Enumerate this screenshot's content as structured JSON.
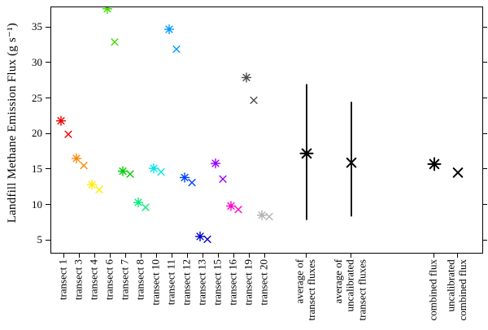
{
  "chart_data": {
    "type": "scatter",
    "title": "",
    "xlabel": "",
    "ylabel": "Landfill Methane Emission Flux (g s⁻¹)",
    "ylim": [
      3.3,
      37.9
    ],
    "yticks": [
      5,
      10,
      15,
      20,
      25,
      30,
      35
    ],
    "grid": false,
    "legend_position": "none",
    "marker_types": {
      "star": "asterisk pch-8",
      "cross": "x pch-4"
    },
    "categories": [
      "transect 1",
      "transect 3",
      "transect 4",
      "transect 6",
      "transect 7",
      "transect 8",
      "transect 10",
      "transect 11",
      "transect 12",
      "transect 13",
      "transect 15",
      "transect 16",
      "transect 19",
      "transect 20",
      "average of\ntransect fluxes",
      "average of\nuncalibrated\ntransect fluxes",
      "combined flux",
      "uncalibrated\ncombined flux"
    ],
    "transects": [
      {
        "label": "transect 1",
        "color": "#ee0000",
        "star": 21.9,
        "cross": 20.0
      },
      {
        "label": "transect 3",
        "color": "#ff8800",
        "star": 16.6,
        "cross": 15.6
      },
      {
        "label": "transect 4",
        "color": "#ffee00",
        "star": 12.9,
        "cross": 12.2
      },
      {
        "label": "transect 6",
        "color": "#44dd00",
        "star": 37.7,
        "cross": 33.0
      },
      {
        "label": "transect 7",
        "color": "#00cc00",
        "star": 14.8,
        "cross": 14.4
      },
      {
        "label": "transect 8",
        "color": "#00ee77",
        "star": 10.4,
        "cross": 9.7
      },
      {
        "label": "transect 10",
        "color": "#00e5e5",
        "star": 15.2,
        "cross": 14.7
      },
      {
        "label": "transect 11",
        "color": "#0099ff",
        "star": 34.8,
        "cross": 32.0
      },
      {
        "label": "transect 12",
        "color": "#0044ff",
        "star": 13.9,
        "cross": 13.2
      },
      {
        "label": "transect 13",
        "color": "#0000cc",
        "star": 5.6,
        "cross": 5.2
      },
      {
        "label": "transect 15",
        "color": "#9900ff",
        "star": 15.9,
        "cross": 13.7
      },
      {
        "label": "transect 16",
        "color": "#ff00cc",
        "star": 9.9,
        "cross": 9.4
      },
      {
        "label": "transect 19",
        "color": "#4d4d4d",
        "star": 28.0,
        "cross": 24.8
      },
      {
        "label": "transect 20",
        "color": "#b3b3b3",
        "star": 8.6,
        "cross": 8.4
      }
    ],
    "summaries": [
      {
        "label": "average of\ntransect fluxes",
        "marker": "star",
        "value": 17.3,
        "range_low": 8.0,
        "range_high": 27.0,
        "color": "#000000"
      },
      {
        "label": "average of\nuncalibrated\ntransect fluxes",
        "marker": "cross",
        "value": 16.0,
        "range_low": 8.5,
        "range_high": 24.5,
        "color": "#000000"
      },
      {
        "label": "combined flux",
        "marker": "star",
        "value": 15.8,
        "color": "#000000"
      },
      {
        "label": "uncalibrated\ncombined flux",
        "marker": "cross",
        "value": 14.6,
        "color": "#000000"
      }
    ]
  }
}
